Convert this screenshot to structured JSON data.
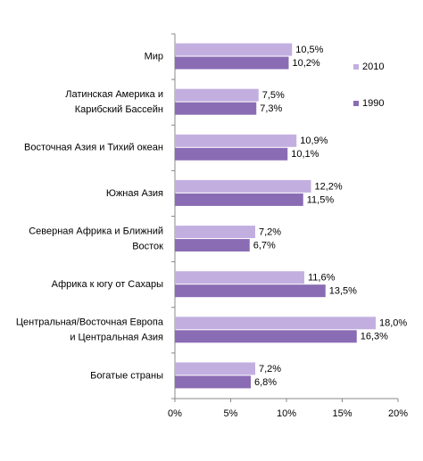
{
  "chart_data": {
    "type": "hbar",
    "categories": [
      [
        "Мир"
      ],
      [
        "Латинская Америка и",
        "Карибский Бассейн"
      ],
      [
        "Восточная Азия и Тихий океан"
      ],
      [
        "Южная Азия"
      ],
      [
        "Северная Африка и Ближний",
        "Восток"
      ],
      [
        "Африка к югу от Сахары"
      ],
      [
        "Центральная/Восточная  Европа",
        "и Центральная  Азия"
      ],
      [
        "Богатые страны"
      ]
    ],
    "series": [
      {
        "name": "2010",
        "color": "#c2afe0",
        "values": [
          10.5,
          7.5,
          10.9,
          12.2,
          7.2,
          11.6,
          18.0,
          7.2
        ],
        "value_labels": [
          "10,5%",
          "7,5%",
          "10,9%",
          "12,2%",
          "7,2%",
          "11,6%",
          "18,0%",
          "7,2%"
        ]
      },
      {
        "name": "1990",
        "color": "#8a6cb4",
        "values": [
          10.2,
          7.3,
          10.1,
          11.5,
          6.7,
          13.5,
          16.3,
          6.8
        ],
        "value_labels": [
          "10,2%",
          "7,3%",
          "10,1%",
          "11,5%",
          "6,7%",
          "13,5%",
          "16,3%",
          "6,8%"
        ]
      }
    ],
    "xlim": [
      0,
      20
    ],
    "xticks": [
      {
        "value": 0,
        "label": "0%"
      },
      {
        "value": 5,
        "label": "5%"
      },
      {
        "value": 10,
        "label": "10%"
      },
      {
        "value": 15,
        "label": "15%"
      },
      {
        "value": 20,
        "label": "20%"
      }
    ],
    "legend": "right"
  }
}
